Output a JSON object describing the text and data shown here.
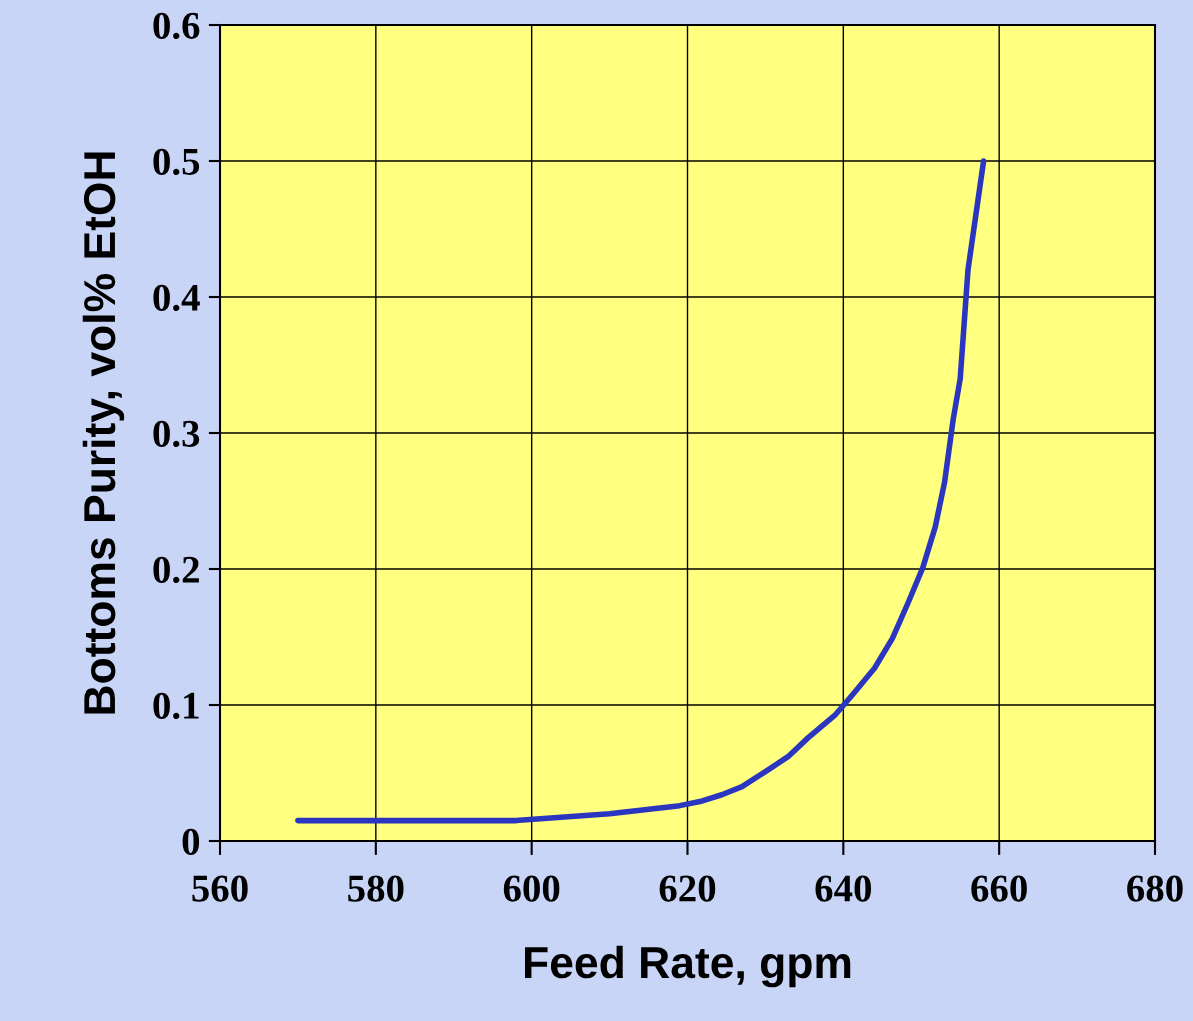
{
  "chart_data": {
    "type": "line",
    "xlabel": "Feed Rate, gpm",
    "ylabel": "Bottoms Purity, vol% EtOH",
    "series": [
      {
        "color": "#2a35c0",
        "x": [
          570,
          598,
          610,
          619,
          621.6,
          624.4,
          627,
          630,
          632.9,
          635.5,
          639,
          641.1,
          644,
          646.3,
          648.3,
          650.2,
          651.8,
          653,
          654.1,
          655,
          656,
          658
        ],
        "values": [
          0.015,
          0.015,
          0.02,
          0.026,
          0.029,
          0.034,
          0.04,
          0.051,
          0.062,
          0.076,
          0.093,
          0.107,
          0.127,
          0.149,
          0.175,
          0.201,
          0.231,
          0.264,
          0.31,
          0.34,
          0.42,
          0.5
        ]
      }
    ],
    "xlim": [
      560,
      680
    ],
    "xticks": [
      560,
      580,
      600,
      620,
      640,
      660,
      680
    ],
    "ylim": [
      0,
      0.6
    ],
    "yticks": [
      {
        "value": 0,
        "label": "0"
      },
      0.1,
      0.2,
      0.3,
      0.4,
      0.5,
      0.6
    ],
    "grid": true,
    "marker": "none",
    "line_style": "solid"
  }
}
